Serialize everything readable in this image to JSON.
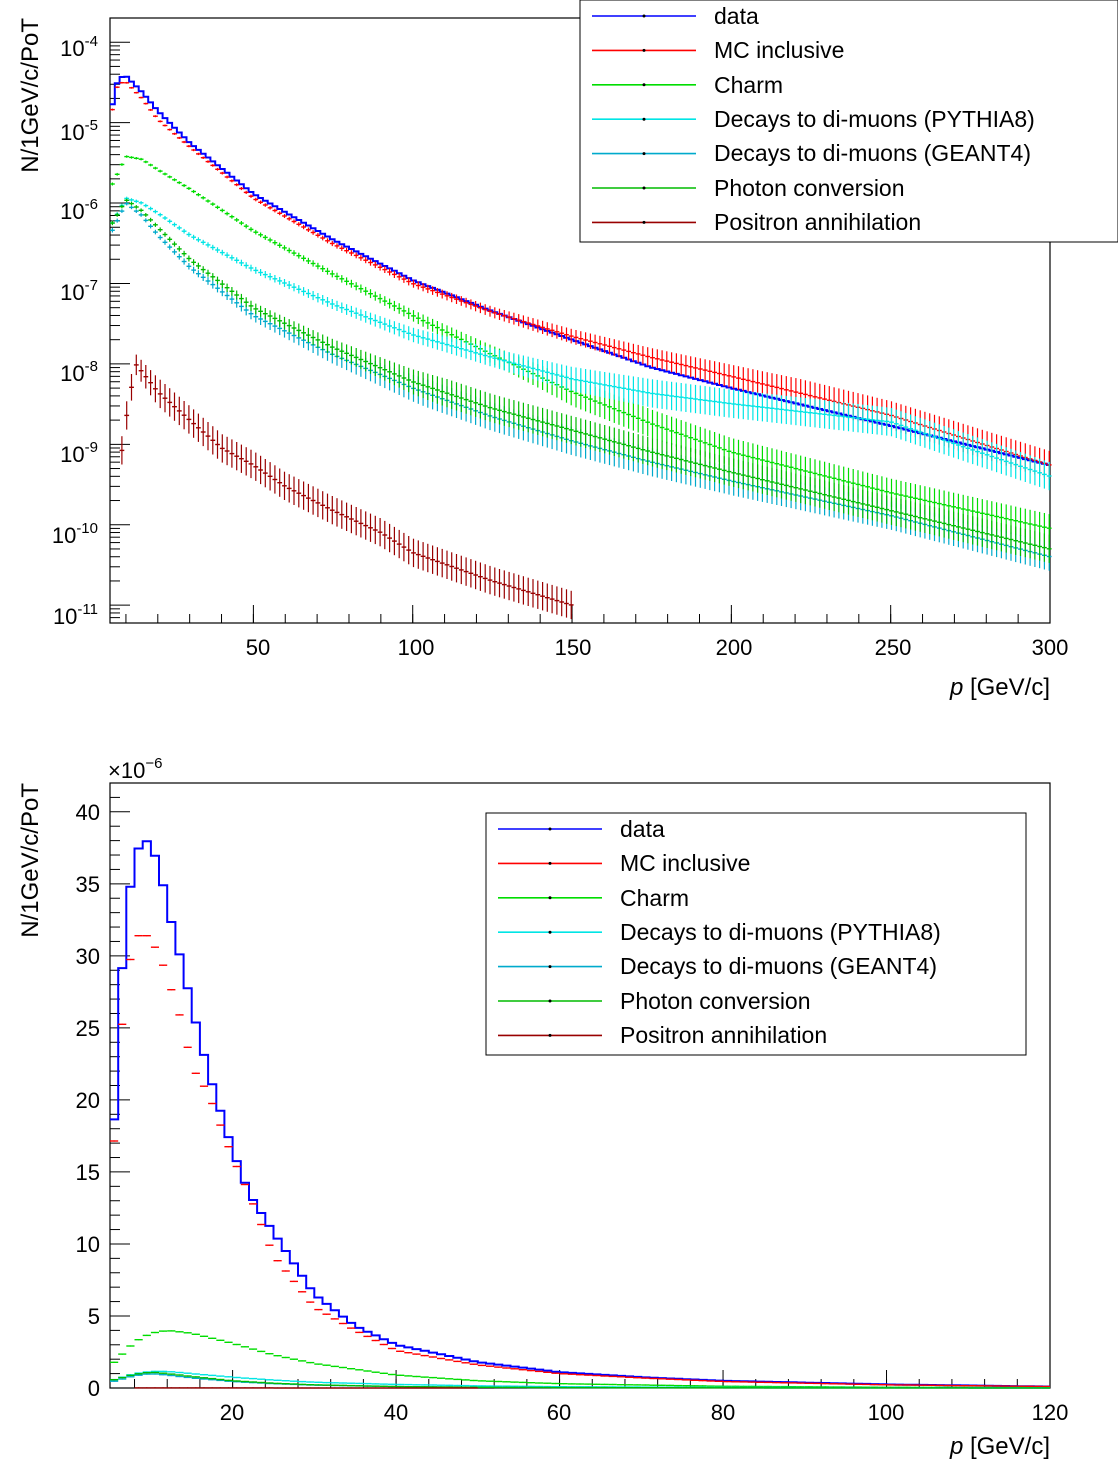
{
  "colors": {
    "data": "#0000ff",
    "mc": "#ff0000",
    "charm": "#00dd00",
    "pythia": "#00e5e5",
    "geant": "#00aacc",
    "photon": "#00bb00",
    "positron": "#990000"
  },
  "legend": [
    {
      "key": "data",
      "label": "data"
    },
    {
      "key": "mc",
      "label": "MC inclusive"
    },
    {
      "key": "charm",
      "label": "Charm"
    },
    {
      "key": "pythia",
      "label": "Decays to di-muons (PYTHIA8)"
    },
    {
      "key": "geant",
      "label": "Decays to di-muons (GEANT4)"
    },
    {
      "key": "photon",
      "label": "Photon conversion"
    },
    {
      "key": "positron",
      "label": "Positron annihilation"
    }
  ],
  "chart_data": [
    {
      "type": "line",
      "scale": "log",
      "xlabel_italic": "p",
      "xlabel_rest": " [GeV/c]",
      "ylabel": "N/1GeV/c/PoT",
      "xlim": [
        5,
        300
      ],
      "ylim": [
        6e-12,
        0.0002
      ],
      "xticks": [
        50,
        100,
        150,
        200,
        250,
        300
      ],
      "yticks_exp": [
        -4,
        -5,
        -6,
        -7,
        -8,
        -9,
        -10,
        -11
      ],
      "legend_position": "top-right",
      "series": [
        {
          "key": "data",
          "x": [
            5,
            7,
            9,
            10,
            15,
            20,
            30,
            50,
            75,
            100,
            125,
            150,
            175,
            200,
            250,
            300
          ],
          "y": [
            1.2e-05,
            3e-05,
            3.8e-05,
            3.8e-05,
            2.4e-05,
            1.4e-05,
            5.6e-06,
            1.3e-06,
            3.5e-07,
            1.1e-07,
            4.5e-08,
            2e-08,
            9e-09,
            5e-09,
            1.7e-09,
            5.5e-10
          ]
        },
        {
          "key": "mc",
          "x": [
            5,
            7,
            9,
            10,
            15,
            20,
            30,
            50,
            75,
            100,
            125,
            150,
            175,
            200,
            250,
            300
          ],
          "y": [
            1e-05,
            2.7e-05,
            3.2e-05,
            3.2e-05,
            2e-05,
            1.1e-05,
            5e-06,
            1.15e-06,
            3.1e-07,
            1e-07,
            4.4e-08,
            2.2e-08,
            1.2e-08,
            7e-09,
            2.3e-09,
            5.5e-10
          ]
        },
        {
          "key": "charm",
          "x": [
            5,
            10,
            15,
            20,
            30,
            50,
            75,
            100,
            125,
            150,
            175,
            200,
            250,
            300
          ],
          "y": [
            1.5e-06,
            3.8e-06,
            3.5e-06,
            2.6e-06,
            1.5e-06,
            4.5e-07,
            1.3e-07,
            4e-08,
            1.3e-08,
            4.5e-09,
            1.8e-09,
            8e-10,
            2.5e-10,
            9e-11
          ]
        },
        {
          "key": "pythia",
          "x": [
            5,
            10,
            15,
            20,
            30,
            50,
            75,
            100,
            125,
            150,
            175,
            200,
            250,
            300
          ],
          "y": [
            5e-07,
            1.15e-06,
            1e-06,
            7.5e-07,
            4e-07,
            1.5e-07,
            5.5e-08,
            2.3e-08,
            1.2e-08,
            6.5e-09,
            4.3e-09,
            3.2e-09,
            1.9e-09,
            4e-10
          ]
        },
        {
          "key": "geant",
          "x": [
            5,
            10,
            15,
            20,
            30,
            50,
            75,
            100,
            125,
            150,
            175,
            200,
            250,
            300
          ],
          "y": [
            4e-07,
            1e-06,
            7e-07,
            4e-07,
            1.6e-07,
            4e-08,
            1.3e-08,
            5e-09,
            2.2e-09,
            1.1e-09,
            6e-10,
            3.5e-10,
            1.3e-10,
            4e-11
          ]
        },
        {
          "key": "photon",
          "x": [
            5,
            10,
            15,
            20,
            30,
            50,
            75,
            100,
            125,
            150,
            175,
            200,
            250,
            300
          ],
          "y": [
            5e-07,
            1.1e-06,
            8e-07,
            5e-07,
            2e-07,
            5e-08,
            1.6e-08,
            6e-09,
            2.8e-09,
            1.5e-09,
            8e-10,
            4.5e-10,
            1.5e-10,
            5e-11
          ]
        },
        {
          "key": "positron",
          "x": [
            8,
            10,
            13,
            15,
            20,
            30,
            40,
            50,
            60,
            75,
            90,
            100,
            125,
            150
          ],
          "y": [
            5e-10,
            2e-09,
            1e-08,
            8e-09,
            4.5e-09,
            2e-09,
            9e-10,
            5.5e-10,
            3e-10,
            1.5e-10,
            8e-11,
            4.5e-11,
            2e-11,
            1e-11
          ]
        }
      ]
    },
    {
      "type": "line",
      "scale": "linear",
      "xlabel_italic": "p",
      "xlabel_rest": " [GeV/c]",
      "ylabel": "N/1GeV/c/PoT",
      "multiplier_base": "×10",
      "multiplier_exp": "−6",
      "xlim": [
        5,
        120
      ],
      "ylim": [
        0,
        42
      ],
      "xticks": [
        20,
        40,
        60,
        80,
        100,
        120
      ],
      "yticks": [
        0,
        5,
        10,
        15,
        20,
        25,
        30,
        35,
        40
      ],
      "legend_position": "top-right",
      "series": [
        {
          "key": "data",
          "x": [
            5,
            6,
            7,
            8,
            9,
            10,
            11,
            12,
            13,
            14,
            15,
            17,
            20,
            22,
            25,
            30,
            35,
            40,
            50,
            60,
            70,
            80,
            100,
            120
          ],
          "y": [
            12,
            25.3,
            33,
            36.6,
            38.3,
            37.6,
            36.3,
            33.5,
            31.2,
            29,
            26.5,
            22,
            16.5,
            13.5,
            10.8,
            6.5,
            4.3,
            3,
            1.8,
            1.1,
            0.75,
            0.5,
            0.25,
            0.1
          ]
        },
        {
          "key": "mc",
          "x": [
            5,
            6,
            7,
            8,
            9,
            10,
            11,
            12,
            13,
            14,
            15,
            17,
            20,
            22,
            25,
            30,
            35,
            40,
            50,
            60,
            70,
            80,
            100,
            120
          ],
          "y": [
            12.3,
            22,
            28.5,
            31,
            31.8,
            31,
            30.2,
            28.5,
            26.8,
            25,
            22.3,
            20.5,
            16,
            13.5,
            9.2,
            5.6,
            4,
            2.6,
            1.6,
            1.0,
            0.7,
            0.45,
            0.22,
            0.1
          ]
        },
        {
          "key": "charm",
          "x": [
            5,
            8,
            10,
            12,
            15,
            20,
            25,
            30,
            40,
            50,
            60,
            80,
            100,
            120
          ],
          "y": [
            1.5,
            3.2,
            3.8,
            4.0,
            3.8,
            3.1,
            2.3,
            1.7,
            0.9,
            0.5,
            0.3,
            0.12,
            0.05,
            0.02
          ]
        },
        {
          "key": "pythia",
          "x": [
            5,
            8,
            10,
            12,
            15,
            20,
            25,
            30,
            40,
            50,
            60,
            80,
            100,
            120
          ],
          "y": [
            0.5,
            1.0,
            1.15,
            1.15,
            1.0,
            0.75,
            0.55,
            0.4,
            0.25,
            0.15,
            0.09,
            0.04,
            0.02,
            0.01
          ]
        },
        {
          "key": "geant",
          "x": [
            5,
            8,
            10,
            12,
            15,
            20,
            25,
            30,
            40,
            50,
            60,
            80,
            100,
            120
          ],
          "y": [
            0.4,
            0.85,
            1.0,
            0.9,
            0.7,
            0.45,
            0.3,
            0.2,
            0.1,
            0.05,
            0.03,
            0.01,
            0.005,
            0.002
          ]
        },
        {
          "key": "photon",
          "x": [
            5,
            8,
            10,
            12,
            15,
            20,
            25,
            30,
            40,
            50,
            60,
            80,
            100,
            120
          ],
          "y": [
            0.5,
            0.95,
            1.1,
            1.0,
            0.8,
            0.5,
            0.33,
            0.22,
            0.1,
            0.05,
            0.03,
            0.012,
            0.005,
            0.002
          ]
        },
        {
          "key": "positron",
          "x": [
            8,
            10,
            15,
            20,
            30,
            40,
            50
          ],
          "y": [
            0.005,
            0.01,
            0.008,
            0.005,
            0.002,
            0.001,
            0.0005
          ]
        }
      ]
    }
  ]
}
